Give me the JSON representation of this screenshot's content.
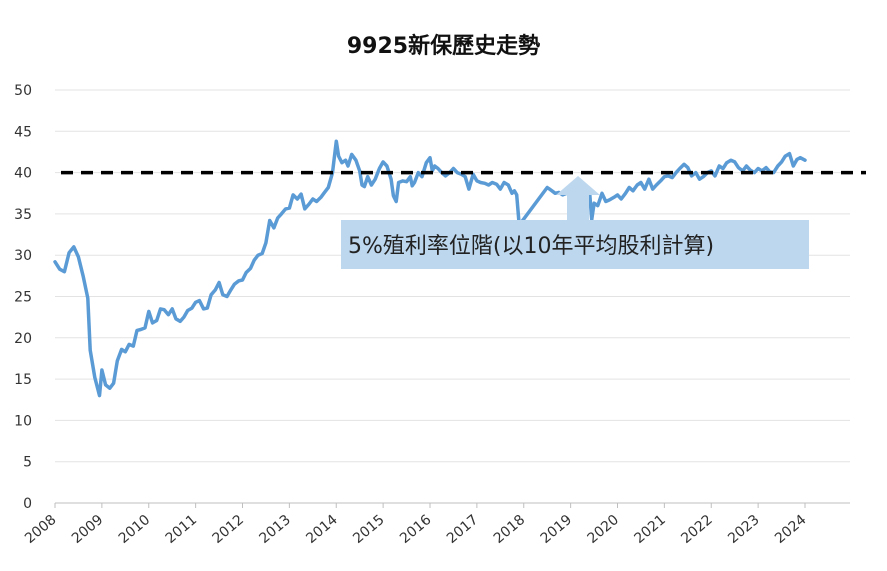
{
  "chart_data": {
    "type": "line",
    "title": "9925新保歷史走勢",
    "xlabel": "",
    "ylabel": "",
    "ylim": [
      0,
      50
    ],
    "yticks": [
      0,
      5,
      10,
      15,
      20,
      25,
      30,
      35,
      40,
      45,
      50
    ],
    "xlim": [
      2008,
      2024.9
    ],
    "xticks": [
      "2008",
      "2009",
      "2010",
      "2011",
      "2012",
      "2013",
      "2014",
      "2015",
      "2016",
      "2017",
      "2018",
      "2019",
      "2020",
      "2021",
      "2022",
      "2023",
      "2024"
    ],
    "grid": true,
    "series": [
      {
        "name": "",
        "color": "#5b9bd5",
        "points": [
          [
            2008.0,
            29.2
          ],
          [
            2008.1,
            28.3
          ],
          [
            2008.2,
            28.0
          ],
          [
            2008.3,
            30.3
          ],
          [
            2008.4,
            31.0
          ],
          [
            2008.5,
            29.8
          ],
          [
            2008.6,
            27.5
          ],
          [
            2008.7,
            24.8
          ],
          [
            2008.75,
            18.5
          ],
          [
            2008.85,
            15.2
          ],
          [
            2008.95,
            13.0
          ],
          [
            2009.0,
            16.1
          ],
          [
            2009.08,
            14.3
          ],
          [
            2009.17,
            13.9
          ],
          [
            2009.25,
            14.5
          ],
          [
            2009.33,
            17.2
          ],
          [
            2009.42,
            18.6
          ],
          [
            2009.5,
            18.3
          ],
          [
            2009.58,
            19.2
          ],
          [
            2009.67,
            19.0
          ],
          [
            2009.75,
            20.9
          ],
          [
            2009.83,
            21.0
          ],
          [
            2009.92,
            21.2
          ],
          [
            2010.0,
            23.2
          ],
          [
            2010.08,
            21.8
          ],
          [
            2010.17,
            22.1
          ],
          [
            2010.25,
            23.5
          ],
          [
            2010.33,
            23.4
          ],
          [
            2010.42,
            22.8
          ],
          [
            2010.5,
            23.5
          ],
          [
            2010.58,
            22.3
          ],
          [
            2010.67,
            22.0
          ],
          [
            2010.75,
            22.5
          ],
          [
            2010.83,
            23.3
          ],
          [
            2010.92,
            23.6
          ],
          [
            2011.0,
            24.3
          ],
          [
            2011.08,
            24.5
          ],
          [
            2011.17,
            23.5
          ],
          [
            2011.25,
            23.6
          ],
          [
            2011.33,
            25.2
          ],
          [
            2011.42,
            25.8
          ],
          [
            2011.5,
            26.7
          ],
          [
            2011.58,
            25.2
          ],
          [
            2011.67,
            25.0
          ],
          [
            2011.75,
            25.8
          ],
          [
            2011.83,
            26.5
          ],
          [
            2011.92,
            26.9
          ],
          [
            2012.0,
            27.0
          ],
          [
            2012.08,
            27.9
          ],
          [
            2012.17,
            28.4
          ],
          [
            2012.25,
            29.4
          ],
          [
            2012.33,
            30.0
          ],
          [
            2012.42,
            30.2
          ],
          [
            2012.5,
            31.5
          ],
          [
            2012.58,
            34.2
          ],
          [
            2012.67,
            33.3
          ],
          [
            2012.75,
            34.5
          ],
          [
            2012.83,
            35.0
          ],
          [
            2012.92,
            35.6
          ],
          [
            2013.0,
            35.7
          ],
          [
            2013.08,
            37.3
          ],
          [
            2013.17,
            36.8
          ],
          [
            2013.25,
            37.4
          ],
          [
            2013.33,
            35.6
          ],
          [
            2013.42,
            36.2
          ],
          [
            2013.5,
            36.8
          ],
          [
            2013.58,
            36.5
          ],
          [
            2013.67,
            37.0
          ],
          [
            2013.75,
            37.6
          ],
          [
            2013.83,
            38.2
          ],
          [
            2013.92,
            40.0
          ],
          [
            2014.0,
            43.8
          ],
          [
            2014.05,
            42.0
          ],
          [
            2014.12,
            41.2
          ],
          [
            2014.2,
            41.5
          ],
          [
            2014.25,
            40.8
          ],
          [
            2014.33,
            42.2
          ],
          [
            2014.42,
            41.5
          ],
          [
            2014.5,
            40.2
          ],
          [
            2014.55,
            38.5
          ],
          [
            2014.6,
            38.3
          ],
          [
            2014.67,
            39.5
          ],
          [
            2014.75,
            38.5
          ],
          [
            2014.83,
            39.2
          ],
          [
            2014.92,
            40.5
          ],
          [
            2015.0,
            41.3
          ],
          [
            2015.08,
            40.8
          ],
          [
            2015.17,
            39.2
          ],
          [
            2015.22,
            37.2
          ],
          [
            2015.28,
            36.5
          ],
          [
            2015.33,
            38.8
          ],
          [
            2015.42,
            39.0
          ],
          [
            2015.5,
            38.9
          ],
          [
            2015.58,
            39.5
          ],
          [
            2015.62,
            38.4
          ],
          [
            2015.67,
            38.8
          ],
          [
            2015.75,
            40.0
          ],
          [
            2015.83,
            39.5
          ],
          [
            2015.92,
            41.2
          ],
          [
            2016.0,
            41.8
          ],
          [
            2016.05,
            40.2
          ],
          [
            2016.1,
            40.8
          ],
          [
            2016.17,
            40.5
          ],
          [
            2016.25,
            40.0
          ],
          [
            2016.33,
            39.6
          ],
          [
            2016.42,
            40.0
          ],
          [
            2016.5,
            40.5
          ],
          [
            2016.58,
            40.0
          ],
          [
            2016.67,
            39.8
          ],
          [
            2016.75,
            39.5
          ],
          [
            2016.83,
            38.0
          ],
          [
            2016.92,
            39.8
          ],
          [
            2017.0,
            39.0
          ],
          [
            2017.08,
            38.8
          ],
          [
            2017.17,
            38.7
          ],
          [
            2017.25,
            38.5
          ],
          [
            2017.33,
            38.8
          ],
          [
            2017.42,
            38.6
          ],
          [
            2017.5,
            38.0
          ],
          [
            2017.58,
            38.8
          ],
          [
            2017.67,
            38.5
          ],
          [
            2017.75,
            37.5
          ],
          [
            2017.8,
            37.8
          ],
          [
            2017.85,
            37.3
          ],
          [
            2017.9,
            33.8
          ],
          [
            2017.95,
            34.0
          ],
          [
            2018.5,
            38.2
          ],
          [
            2018.55,
            38.0
          ],
          [
            2018.6,
            37.8
          ],
          [
            2018.67,
            37.5
          ],
          [
            2018.75,
            37.6
          ],
          [
            2018.83,
            37.3
          ],
          [
            2018.92,
            37.5
          ],
          [
            2019.0,
            37.5
          ],
          [
            2019.08,
            37.4
          ],
          [
            2019.17,
            37.5
          ],
          [
            2019.25,
            37.3
          ],
          [
            2019.33,
            37.5
          ],
          [
            2019.4,
            38.0
          ],
          [
            2019.45,
            34.3
          ],
          [
            2019.5,
            36.3
          ],
          [
            2019.58,
            36.0
          ],
          [
            2019.67,
            37.5
          ],
          [
            2019.75,
            36.5
          ],
          [
            2019.83,
            36.7
          ],
          [
            2019.92,
            37.0
          ],
          [
            2020.0,
            37.3
          ],
          [
            2020.08,
            36.8
          ],
          [
            2020.17,
            37.5
          ],
          [
            2020.25,
            38.2
          ],
          [
            2020.33,
            37.8
          ],
          [
            2020.42,
            38.5
          ],
          [
            2020.5,
            38.8
          ],
          [
            2020.58,
            38.0
          ],
          [
            2020.67,
            39.2
          ],
          [
            2020.75,
            38.0
          ],
          [
            2020.83,
            38.5
          ],
          [
            2020.92,
            39.0
          ],
          [
            2021.0,
            39.5
          ],
          [
            2021.08,
            39.6
          ],
          [
            2021.17,
            39.4
          ],
          [
            2021.25,
            40.0
          ],
          [
            2021.33,
            40.5
          ],
          [
            2021.42,
            41.0
          ],
          [
            2021.5,
            40.6
          ],
          [
            2021.58,
            39.6
          ],
          [
            2021.67,
            40.0
          ],
          [
            2021.75,
            39.2
          ],
          [
            2021.83,
            39.5
          ],
          [
            2021.92,
            40.0
          ],
          [
            2022.0,
            40.2
          ],
          [
            2022.08,
            39.6
          ],
          [
            2022.17,
            40.8
          ],
          [
            2022.25,
            40.5
          ],
          [
            2022.33,
            41.2
          ],
          [
            2022.42,
            41.5
          ],
          [
            2022.5,
            41.3
          ],
          [
            2022.58,
            40.6
          ],
          [
            2022.67,
            40.2
          ],
          [
            2022.75,
            40.8
          ],
          [
            2022.83,
            40.3
          ],
          [
            2022.92,
            40.0
          ],
          [
            2023.0,
            40.5
          ],
          [
            2023.08,
            40.2
          ],
          [
            2023.17,
            40.6
          ],
          [
            2023.25,
            40.1
          ],
          [
            2023.33,
            40.0
          ],
          [
            2023.42,
            40.8
          ],
          [
            2023.5,
            41.3
          ],
          [
            2023.58,
            42.0
          ],
          [
            2023.67,
            42.3
          ],
          [
            2023.75,
            40.8
          ],
          [
            2023.83,
            41.6
          ],
          [
            2023.9,
            41.8
          ],
          [
            2024.0,
            41.5
          ]
        ]
      },
      {
        "name": "",
        "type": "hline",
        "y": 40,
        "color": "#000000",
        "dash": true
      }
    ],
    "annotation": {
      "text": "5%殖利率位階(以10年平均股利計算)",
      "target": [
        2018.0,
        40.2
      ],
      "background": "#bdd7ee"
    }
  }
}
